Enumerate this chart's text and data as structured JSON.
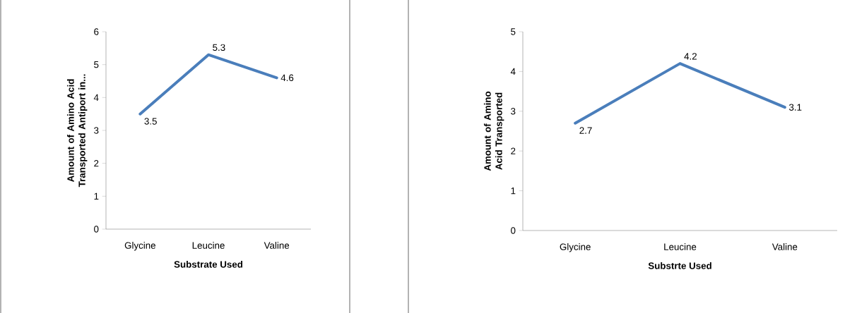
{
  "chart_data": [
    {
      "type": "line",
      "categories": [
        "Glycine",
        "Leucine",
        "Valine"
      ],
      "values": [
        3.5,
        5.3,
        4.6
      ],
      "color": "#4a7ebb",
      "ylim": [
        0,
        6
      ],
      "yticks": [
        0,
        1,
        2,
        3,
        4,
        5,
        6
      ],
      "xlabel": "Substrate Used",
      "ylabel": "Amount of Amino Acid Transported Antiport in...",
      "data_labels": true
    },
    {
      "type": "line",
      "categories": [
        "Glycine",
        "Leucine",
        "Valine"
      ],
      "values": [
        2.7,
        4.2,
        3.1
      ],
      "color": "#4a7ebb",
      "ylim": [
        0,
        5
      ],
      "yticks": [
        0,
        1,
        2,
        3,
        4,
        5
      ],
      "xlabel": "Substrte Used",
      "ylabel": "Amount of Amino Acid Transported",
      "data_labels": true
    }
  ]
}
